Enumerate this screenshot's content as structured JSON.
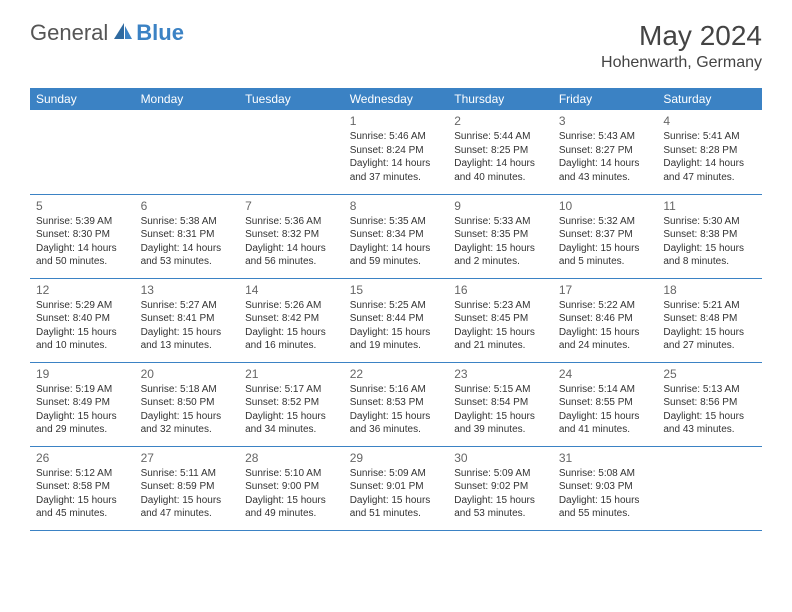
{
  "brand": {
    "part1": "General",
    "part2": "Blue"
  },
  "title": "May 2024",
  "location": "Hohenwarth, Germany",
  "colors": {
    "accent": "#3b82c4",
    "header_text": "#ffffff",
    "body_text": "#333333",
    "muted_text": "#666666",
    "background": "#ffffff"
  },
  "dayHeaders": [
    "Sunday",
    "Monday",
    "Tuesday",
    "Wednesday",
    "Thursday",
    "Friday",
    "Saturday"
  ],
  "layout": {
    "first_weekday_index": 3,
    "days_in_month": 31,
    "rows": 5
  },
  "days": {
    "1": {
      "sunrise": "5:46 AM",
      "sunset": "8:24 PM",
      "daylight": "14 hours and 37 minutes."
    },
    "2": {
      "sunrise": "5:44 AM",
      "sunset": "8:25 PM",
      "daylight": "14 hours and 40 minutes."
    },
    "3": {
      "sunrise": "5:43 AM",
      "sunset": "8:27 PM",
      "daylight": "14 hours and 43 minutes."
    },
    "4": {
      "sunrise": "5:41 AM",
      "sunset": "8:28 PM",
      "daylight": "14 hours and 47 minutes."
    },
    "5": {
      "sunrise": "5:39 AM",
      "sunset": "8:30 PM",
      "daylight": "14 hours and 50 minutes."
    },
    "6": {
      "sunrise": "5:38 AM",
      "sunset": "8:31 PM",
      "daylight": "14 hours and 53 minutes."
    },
    "7": {
      "sunrise": "5:36 AM",
      "sunset": "8:32 PM",
      "daylight": "14 hours and 56 minutes."
    },
    "8": {
      "sunrise": "5:35 AM",
      "sunset": "8:34 PM",
      "daylight": "14 hours and 59 minutes."
    },
    "9": {
      "sunrise": "5:33 AM",
      "sunset": "8:35 PM",
      "daylight": "15 hours and 2 minutes."
    },
    "10": {
      "sunrise": "5:32 AM",
      "sunset": "8:37 PM",
      "daylight": "15 hours and 5 minutes."
    },
    "11": {
      "sunrise": "5:30 AM",
      "sunset": "8:38 PM",
      "daylight": "15 hours and 8 minutes."
    },
    "12": {
      "sunrise": "5:29 AM",
      "sunset": "8:40 PM",
      "daylight": "15 hours and 10 minutes."
    },
    "13": {
      "sunrise": "5:27 AM",
      "sunset": "8:41 PM",
      "daylight": "15 hours and 13 minutes."
    },
    "14": {
      "sunrise": "5:26 AM",
      "sunset": "8:42 PM",
      "daylight": "15 hours and 16 minutes."
    },
    "15": {
      "sunrise": "5:25 AM",
      "sunset": "8:44 PM",
      "daylight": "15 hours and 19 minutes."
    },
    "16": {
      "sunrise": "5:23 AM",
      "sunset": "8:45 PM",
      "daylight": "15 hours and 21 minutes."
    },
    "17": {
      "sunrise": "5:22 AM",
      "sunset": "8:46 PM",
      "daylight": "15 hours and 24 minutes."
    },
    "18": {
      "sunrise": "5:21 AM",
      "sunset": "8:48 PM",
      "daylight": "15 hours and 27 minutes."
    },
    "19": {
      "sunrise": "5:19 AM",
      "sunset": "8:49 PM",
      "daylight": "15 hours and 29 minutes."
    },
    "20": {
      "sunrise": "5:18 AM",
      "sunset": "8:50 PM",
      "daylight": "15 hours and 32 minutes."
    },
    "21": {
      "sunrise": "5:17 AM",
      "sunset": "8:52 PM",
      "daylight": "15 hours and 34 minutes."
    },
    "22": {
      "sunrise": "5:16 AM",
      "sunset": "8:53 PM",
      "daylight": "15 hours and 36 minutes."
    },
    "23": {
      "sunrise": "5:15 AM",
      "sunset": "8:54 PM",
      "daylight": "15 hours and 39 minutes."
    },
    "24": {
      "sunrise": "5:14 AM",
      "sunset": "8:55 PM",
      "daylight": "15 hours and 41 minutes."
    },
    "25": {
      "sunrise": "5:13 AM",
      "sunset": "8:56 PM",
      "daylight": "15 hours and 43 minutes."
    },
    "26": {
      "sunrise": "5:12 AM",
      "sunset": "8:58 PM",
      "daylight": "15 hours and 45 minutes."
    },
    "27": {
      "sunrise": "5:11 AM",
      "sunset": "8:59 PM",
      "daylight": "15 hours and 47 minutes."
    },
    "28": {
      "sunrise": "5:10 AM",
      "sunset": "9:00 PM",
      "daylight": "15 hours and 49 minutes."
    },
    "29": {
      "sunrise": "5:09 AM",
      "sunset": "9:01 PM",
      "daylight": "15 hours and 51 minutes."
    },
    "30": {
      "sunrise": "5:09 AM",
      "sunset": "9:02 PM",
      "daylight": "15 hours and 53 minutes."
    },
    "31": {
      "sunrise": "5:08 AM",
      "sunset": "9:03 PM",
      "daylight": "15 hours and 55 minutes."
    }
  },
  "labels": {
    "sunrise_prefix": "Sunrise: ",
    "sunset_prefix": "Sunset: ",
    "daylight_prefix": "Daylight: "
  }
}
